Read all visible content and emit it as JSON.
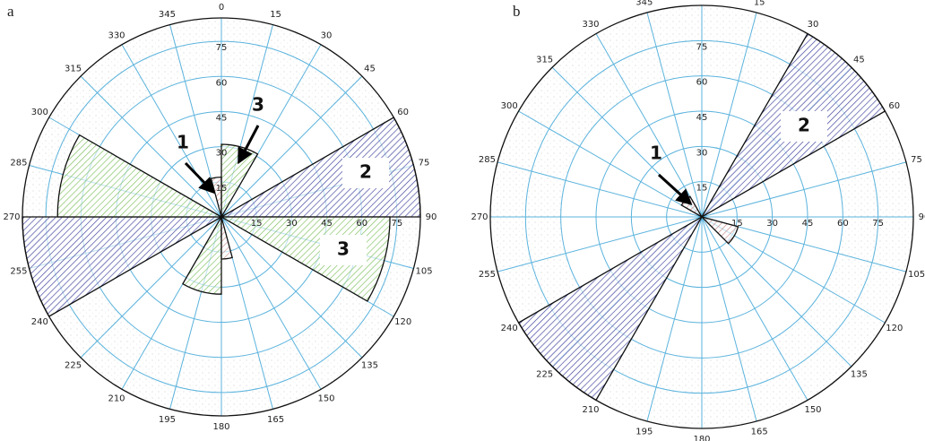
{
  "chart_data": [
    {
      "type": "rose",
      "panel": "a",
      "rlim": [
        0,
        85
      ],
      "rticks": [
        15,
        30,
        45,
        60,
        75
      ],
      "thetaticks": [
        0,
        15,
        30,
        45,
        60,
        75,
        90,
        105,
        120,
        135,
        150,
        165,
        180,
        195,
        210,
        225,
        240,
        255,
        270,
        285,
        300,
        315,
        330,
        345
      ],
      "sectors": [
        {
          "start": 60,
          "end": 90,
          "value": 85,
          "color": "#3b3f9c"
        },
        {
          "start": 240,
          "end": 270,
          "value": 85,
          "color": "#3b3f9c"
        },
        {
          "start": 270,
          "end": 300,
          "value": 70,
          "color": "#7cbf5a"
        },
        {
          "start": 90,
          "end": 120,
          "value": 72,
          "color": "#7cbf5a"
        },
        {
          "start": 0,
          "end": 30,
          "value": 31,
          "color": "#7cbf5a"
        },
        {
          "start": 180,
          "end": 210,
          "value": 33,
          "color": "#7cbf5a"
        },
        {
          "start": 345,
          "end": 360,
          "value": 17,
          "color": "#c98a8a"
        },
        {
          "start": 165,
          "end": 180,
          "value": 18,
          "color": "#c98a8a"
        }
      ],
      "annotations": [
        "1",
        "3",
        "2",
        "3"
      ]
    },
    {
      "type": "rose",
      "panel": "b",
      "rlim": [
        0,
        90
      ],
      "rticks": [
        15,
        30,
        45,
        60,
        75
      ],
      "thetaticks": [
        0,
        15,
        30,
        45,
        60,
        75,
        90,
        105,
        120,
        135,
        150,
        165,
        180,
        195,
        210,
        225,
        240,
        255,
        270,
        285,
        300,
        315,
        330,
        345
      ],
      "sectors": [
        {
          "start": 30,
          "end": 60,
          "value": 90,
          "color": "#3b3f9c"
        },
        {
          "start": 210,
          "end": 240,
          "value": 90,
          "color": "#3b3f9c"
        },
        {
          "start": 300,
          "end": 330,
          "value": 10,
          "color": "#c98a8a"
        },
        {
          "start": 105,
          "end": 135,
          "value": 16,
          "color": "#c98a8a"
        }
      ],
      "annotations": [
        "1",
        "2"
      ]
    }
  ]
}
